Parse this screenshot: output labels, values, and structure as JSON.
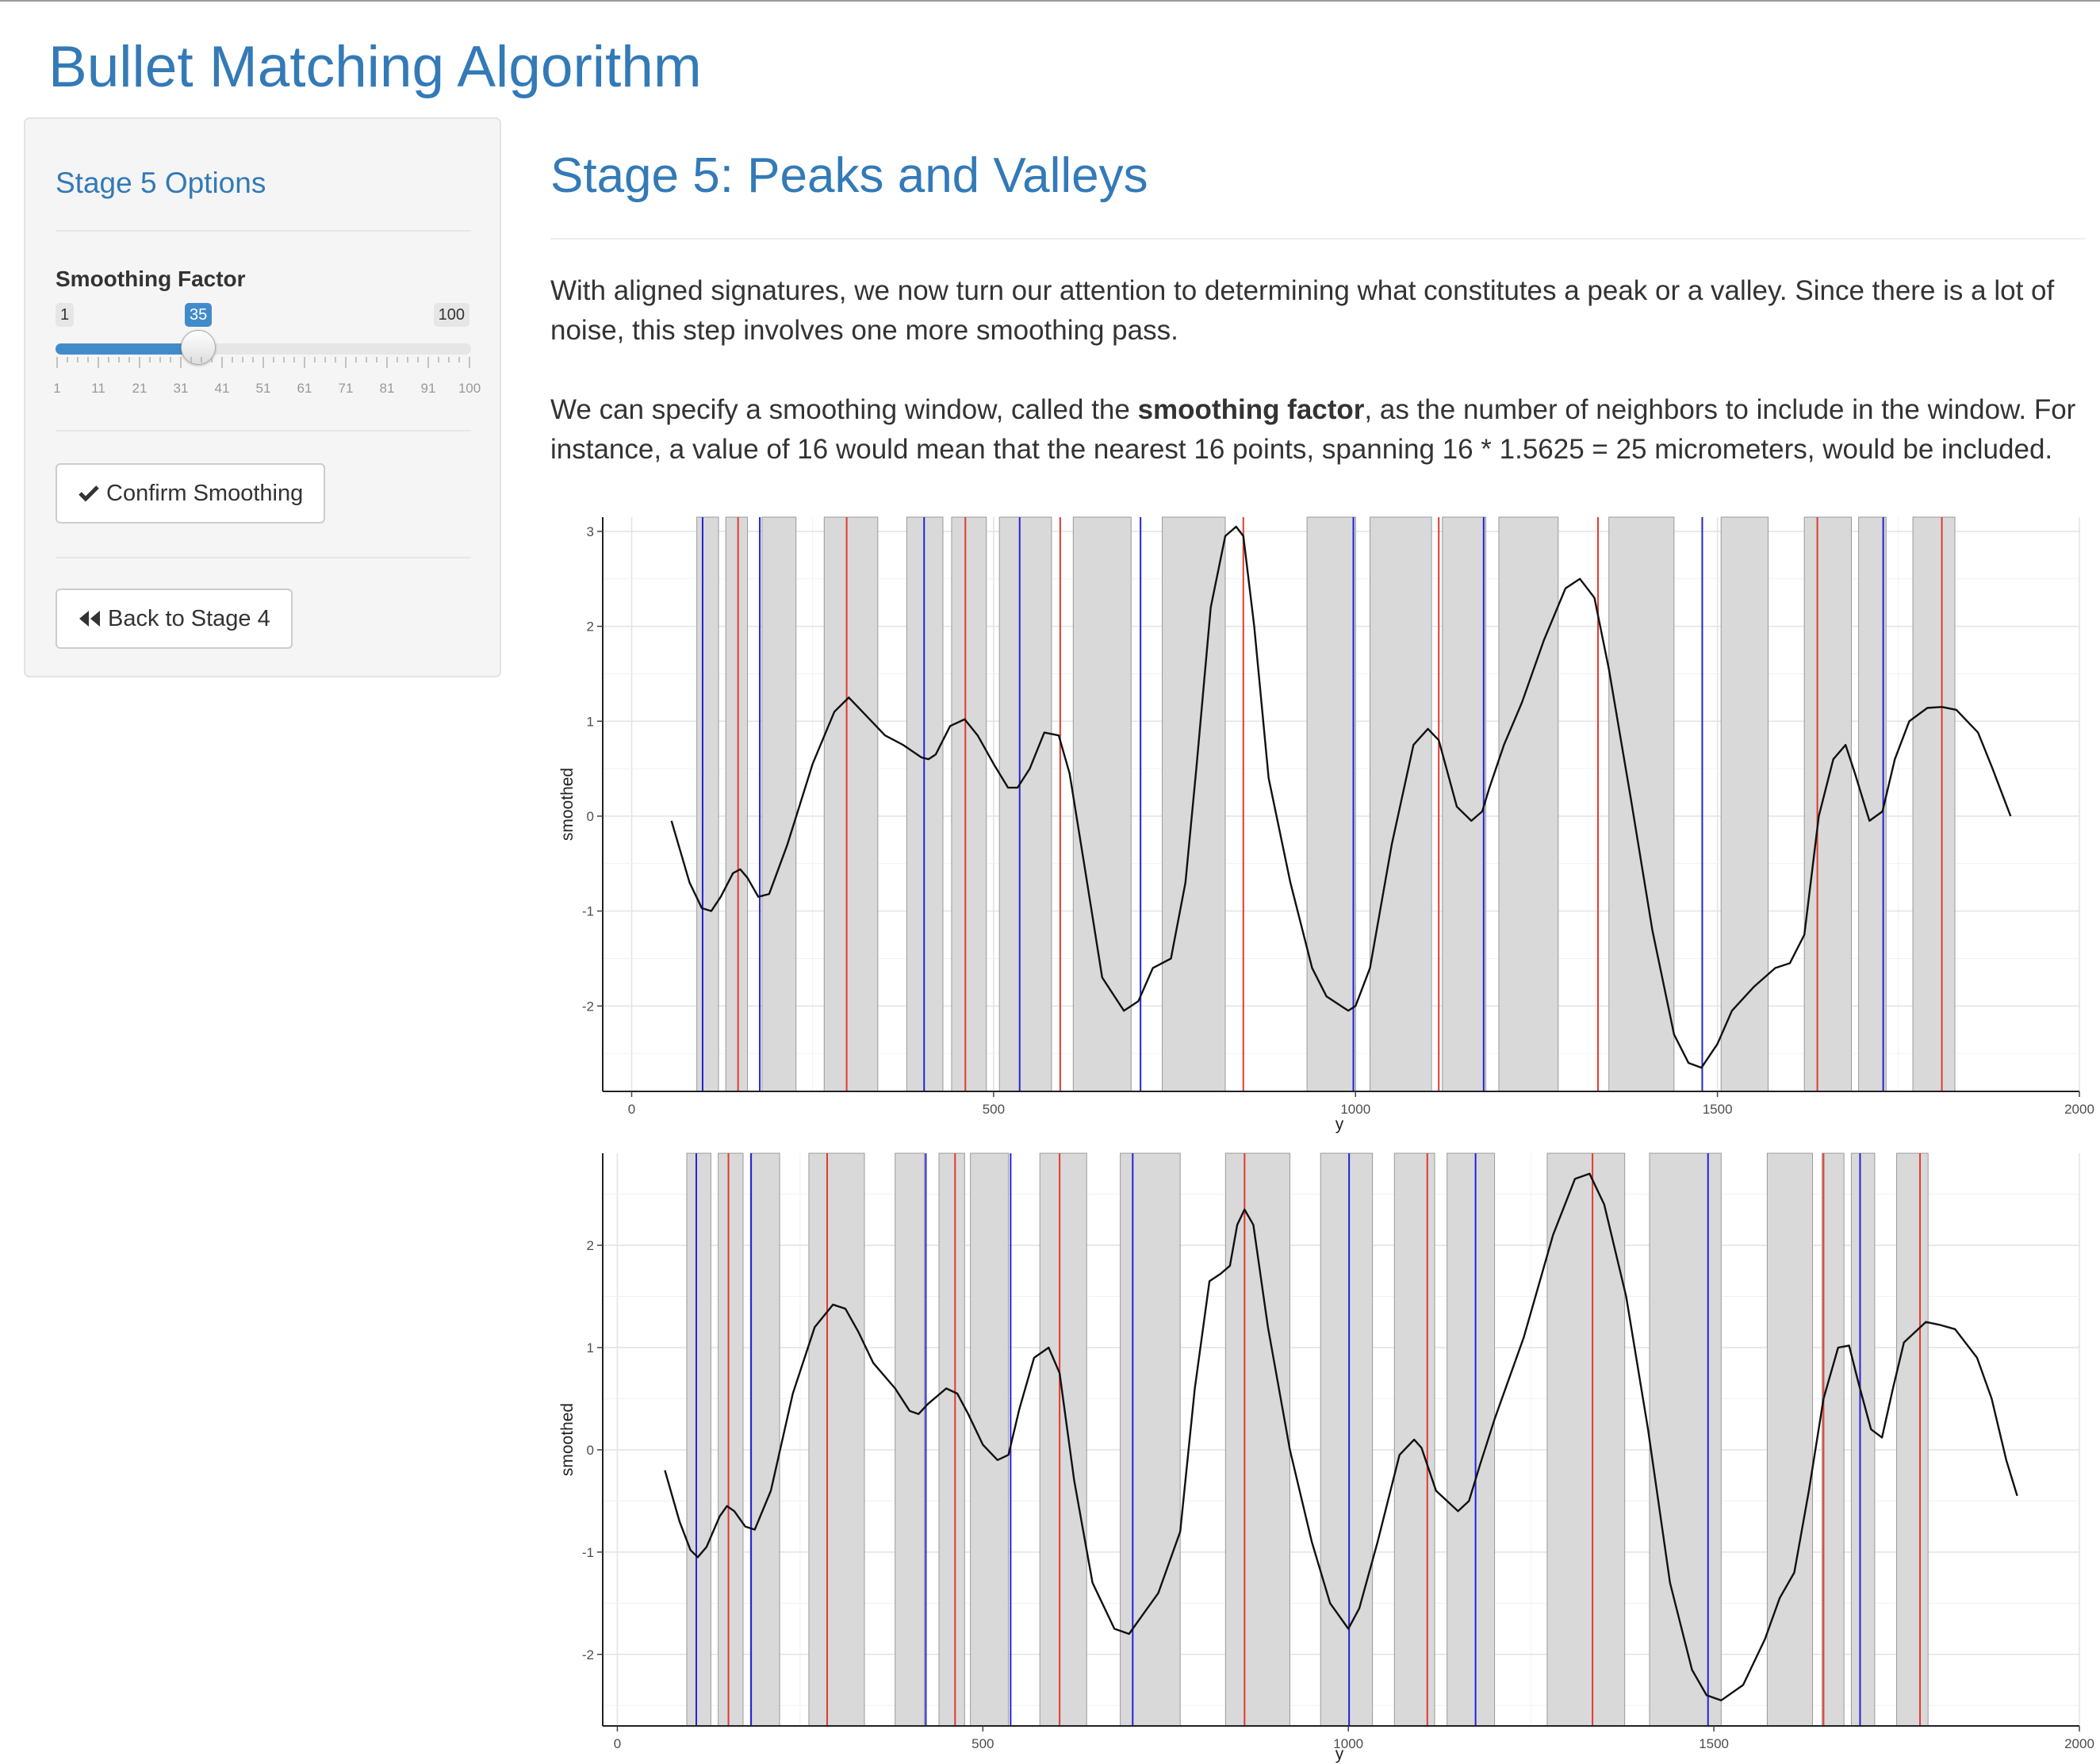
{
  "app_title": "Bullet Matching Algorithm",
  "sidebar": {
    "title": "Stage 5 Options",
    "slider": {
      "label": "Smoothing Factor",
      "min": 1,
      "max": 100,
      "value": 35,
      "min_label": "1",
      "max_label": "100",
      "value_label": "35",
      "ticks": [
        "1",
        "11",
        "21",
        "31",
        "41",
        "51",
        "61",
        "71",
        "81",
        "91",
        "100"
      ]
    },
    "confirm_button": "Confirm Smoothing",
    "back_button": "Back to Stage 4"
  },
  "main": {
    "title": "Stage 5: Peaks and Valleys",
    "para1": "With aligned signatures, we now turn our attention to determining what constitutes a peak or a valley. Since there is a lot of noise, this step involves one more smoothing pass.",
    "para2_before": "We can specify a smoothing window, called the ",
    "para2_bold": "smoothing factor",
    "para2_after": ", as the number of neighbors to include in the window. For instance, a value of 16 would mean that the nearest 16 points, spanning 16 * 1.5625 = 25 micrometers, would be included."
  },
  "colors": {
    "accent": "#337ab7",
    "peak_line": "#e03a2f",
    "valley_line": "#2323d6",
    "band_fill": "#d9d9d9"
  },
  "chart_data": [
    {
      "type": "line",
      "xlabel": "y",
      "ylabel": "smoothed",
      "xlim": [
        -40,
        2000
      ],
      "ylim": [
        -2.9,
        3.15
      ],
      "x_ticks": [
        0,
        500,
        1000,
        1500,
        2000
      ],
      "x_tick_labels": [
        "0",
        "500",
        "1000",
        "1500",
        "2000"
      ],
      "y_ticks": [
        -2,
        -1,
        0,
        1,
        2,
        3
      ],
      "y_tick_labels": [
        "-2",
        "-1",
        "0",
        "1",
        "2",
        "3"
      ],
      "grid": true,
      "series": [
        {
          "x": [
            55,
            80,
            97,
            110,
            123,
            140,
            150,
            160,
            175,
            190,
            215,
            250,
            280,
            300,
            325,
            350,
            375,
            400,
            410,
            420,
            440,
            460,
            478,
            500,
            520,
            533,
            550,
            570,
            590,
            605,
            625,
            650,
            680,
            700,
            720,
            745,
            765,
            780,
            800,
            820,
            835,
            845,
            860,
            880,
            910,
            940,
            960,
            990,
            1000,
            1020,
            1050,
            1080,
            1100,
            1115,
            1140,
            1160,
            1175,
            1185,
            1205,
            1230,
            1260,
            1290,
            1310,
            1330,
            1350,
            1380,
            1410,
            1440,
            1460,
            1478,
            1500,
            1520,
            1550,
            1580,
            1600,
            1620,
            1640,
            1660,
            1677,
            1690,
            1710,
            1728,
            1745,
            1765,
            1790,
            1810,
            1830,
            1860,
            1880,
            1890,
            1905
          ],
          "y": [
            -0.05,
            -0.7,
            -0.97,
            -1.0,
            -0.85,
            -0.6,
            -0.56,
            -0.65,
            -0.85,
            -0.82,
            -0.3,
            0.55,
            1.1,
            1.25,
            1.05,
            0.85,
            0.75,
            0.62,
            0.6,
            0.65,
            0.95,
            1.02,
            0.85,
            0.55,
            0.3,
            0.3,
            0.5,
            0.88,
            0.85,
            0.45,
            -0.5,
            -1.7,
            -2.05,
            -1.95,
            -1.6,
            -1.5,
            -0.7,
            0.5,
            2.2,
            2.95,
            3.05,
            2.95,
            2.0,
            0.4,
            -0.7,
            -1.6,
            -1.9,
            -2.05,
            -2.0,
            -1.6,
            -0.3,
            0.75,
            0.92,
            0.8,
            0.1,
            -0.05,
            0.05,
            0.3,
            0.75,
            1.2,
            1.85,
            2.4,
            2.5,
            2.3,
            1.55,
            0.2,
            -1.2,
            -2.3,
            -2.6,
            -2.65,
            -2.4,
            -2.05,
            -1.8,
            -1.6,
            -1.55,
            -1.25,
            0.0,
            0.6,
            0.75,
            0.45,
            -0.05,
            0.05,
            0.6,
            1.0,
            1.14,
            1.15,
            1.12,
            0.88,
            0.5,
            0.3,
            0.0
          ]
        }
      ],
      "bands": [
        [
          90,
          120
        ],
        [
          130,
          160
        ],
        [
          180,
          227
        ],
        [
          266,
          340
        ],
        [
          380,
          430
        ],
        [
          442,
          490
        ],
        [
          508,
          580
        ],
        [
          610,
          690
        ],
        [
          733,
          820
        ],
        [
          933,
          1000
        ],
        [
          1020,
          1105
        ],
        [
          1120,
          1180
        ],
        [
          1198,
          1280
        ],
        [
          1350,
          1440
        ],
        [
          1505,
          1570
        ],
        [
          1620,
          1685
        ],
        [
          1695,
          1733
        ],
        [
          1770,
          1828
        ]
      ],
      "peaks": [
        147,
        297,
        461,
        592,
        845,
        1115,
        1335,
        1638,
        1810
      ],
      "valleys": [
        98,
        177,
        404,
        536,
        703,
        997,
        1177,
        1479,
        1729
      ]
    },
    {
      "type": "line",
      "xlabel": "y",
      "ylabel": "smoothed",
      "xlim": [
        -20,
        2000
      ],
      "ylim": [
        -2.7,
        2.9
      ],
      "x_ticks": [
        0,
        500,
        1000,
        1500,
        2000
      ],
      "x_tick_labels": [
        "0",
        "500",
        "1000",
        "1500",
        "2000"
      ],
      "y_ticks": [
        -2,
        -1,
        0,
        1,
        2
      ],
      "y_tick_labels": [
        "-2",
        "-1",
        "0",
        "1",
        "2"
      ],
      "grid": true,
      "series": [
        {
          "x": [
            65,
            85,
            100,
            110,
            122,
            140,
            150,
            160,
            175,
            188,
            210,
            240,
            270,
            295,
            312,
            330,
            350,
            380,
            400,
            412,
            425,
            450,
            465,
            480,
            500,
            520,
            535,
            550,
            570,
            590,
            605,
            625,
            650,
            680,
            700,
            720,
            740,
            770,
            790,
            810,
            825,
            838,
            848,
            858,
            870,
            890,
            920,
            950,
            975,
            1000,
            1015,
            1040,
            1070,
            1090,
            1100,
            1120,
            1150,
            1165,
            1180,
            1200,
            1240,
            1280,
            1310,
            1330,
            1350,
            1380,
            1410,
            1440,
            1470,
            1490,
            1510,
            1540,
            1570,
            1590,
            1610,
            1630,
            1650,
            1670,
            1685,
            1698,
            1715,
            1730,
            1745,
            1760,
            1790,
            1810,
            1830,
            1860,
            1880,
            1900,
            1915
          ],
          "y": [
            -0.2,
            -0.7,
            -0.98,
            -1.05,
            -0.95,
            -0.65,
            -0.55,
            -0.6,
            -0.75,
            -0.78,
            -0.4,
            0.55,
            1.2,
            1.42,
            1.38,
            1.15,
            0.85,
            0.6,
            0.38,
            0.35,
            0.45,
            0.6,
            0.55,
            0.35,
            0.05,
            -0.1,
            -0.05,
            0.4,
            0.9,
            1.0,
            0.75,
            -0.3,
            -1.3,
            -1.75,
            -1.8,
            -1.6,
            -1.4,
            -0.8,
            0.6,
            1.65,
            1.72,
            1.8,
            2.2,
            2.35,
            2.2,
            1.2,
            0.0,
            -0.9,
            -1.5,
            -1.75,
            -1.55,
            -0.9,
            -0.05,
            0.1,
            0.02,
            -0.4,
            -0.6,
            -0.5,
            -0.15,
            0.3,
            1.1,
            2.1,
            2.65,
            2.7,
            2.4,
            1.5,
            0.2,
            -1.3,
            -2.15,
            -2.4,
            -2.45,
            -2.3,
            -1.85,
            -1.45,
            -1.2,
            -0.4,
            0.5,
            1.0,
            1.02,
            0.65,
            0.2,
            0.12,
            0.6,
            1.05,
            1.25,
            1.22,
            1.18,
            0.9,
            0.5,
            -0.1,
            -0.45
          ]
        }
      ],
      "bands": [
        [
          95,
          128
        ],
        [
          138,
          172
        ],
        [
          182,
          222
        ],
        [
          262,
          338
        ],
        [
          380,
          420
        ],
        [
          440,
          475
        ],
        [
          483,
          535
        ],
        [
          578,
          642
        ],
        [
          688,
          770
        ],
        [
          832,
          920
        ],
        [
          962,
          1033
        ],
        [
          1063,
          1118
        ],
        [
          1135,
          1200
        ],
        [
          1272,
          1378
        ],
        [
          1412,
          1510
        ],
        [
          1573,
          1635
        ],
        [
          1648,
          1678
        ],
        [
          1688,
          1720
        ],
        [
          1750,
          1793
        ]
      ],
      "peaks": [
        152,
        287,
        462,
        605,
        858,
        1108,
        1334,
        1650,
        1782
      ],
      "valleys": [
        108,
        183,
        422,
        538,
        705,
        1001,
        1174,
        1492,
        1700
      ]
    }
  ]
}
